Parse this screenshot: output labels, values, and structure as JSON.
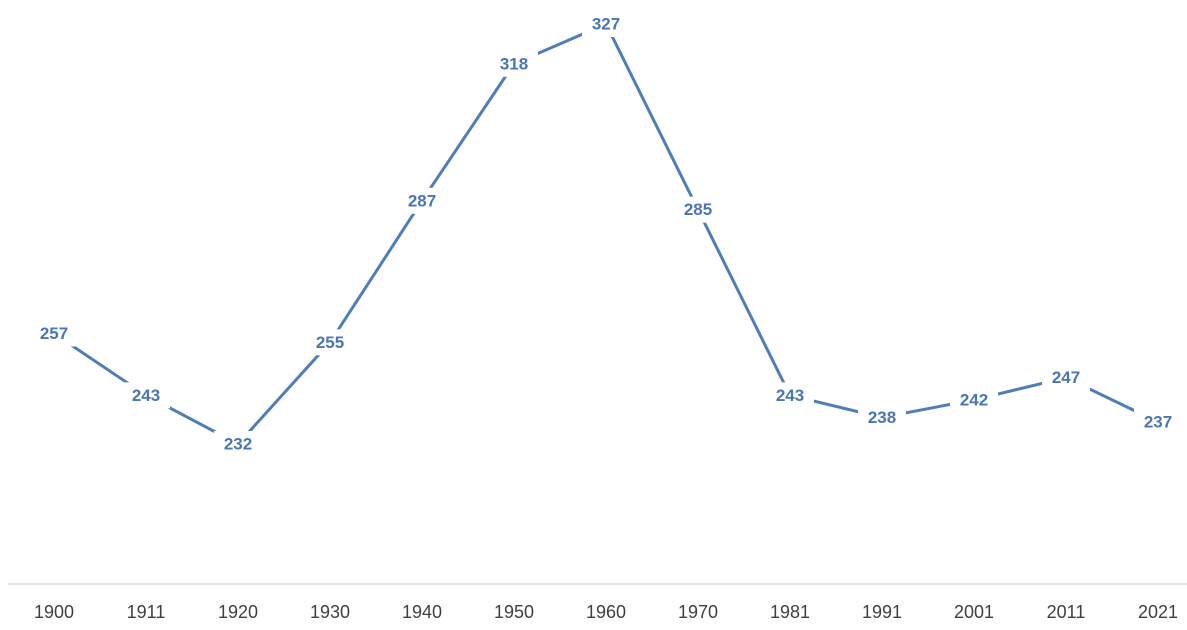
{
  "chart_data": {
    "type": "line",
    "categories": [
      "1900",
      "1911",
      "1920",
      "1930",
      "1940",
      "1950",
      "1960",
      "1970",
      "1981",
      "1991",
      "2001",
      "2011",
      "2021"
    ],
    "series": [
      {
        "color": "#4f7dba",
        "values": [
          257,
          243,
          232,
          255,
          287,
          318,
          327,
          285,
          243,
          238,
          242,
          247,
          237
        ]
      }
    ]
  }
}
